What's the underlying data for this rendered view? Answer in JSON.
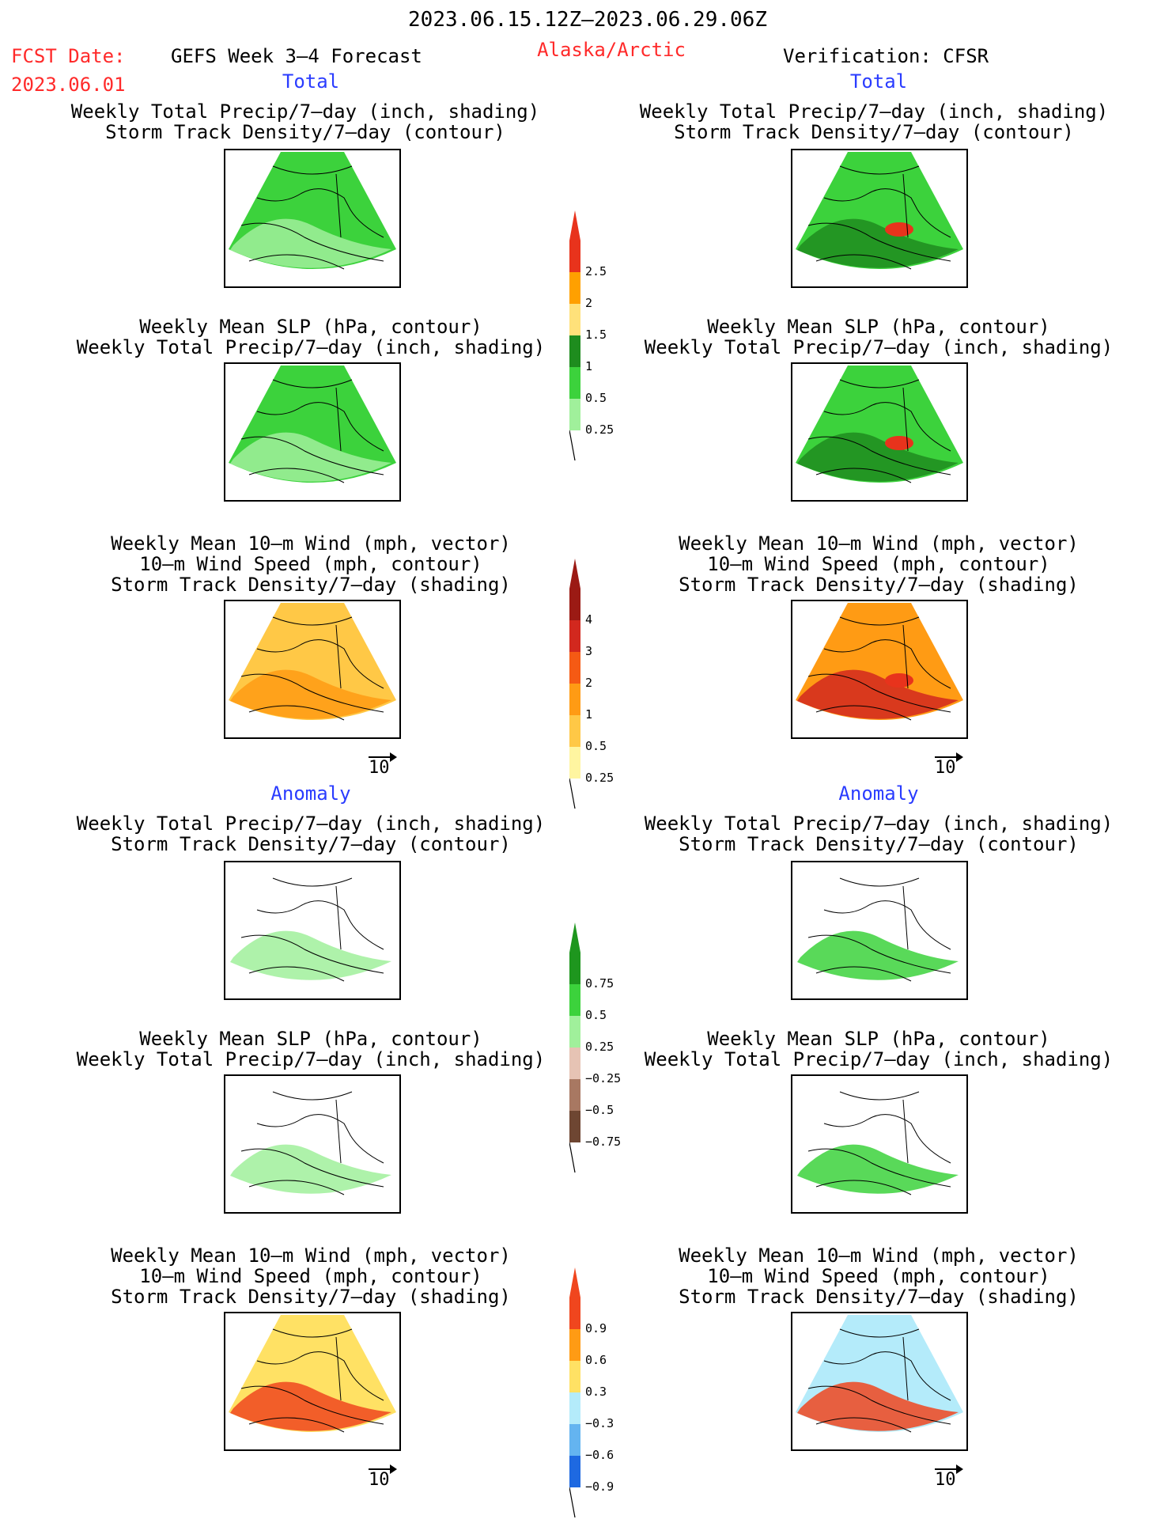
{
  "header": {
    "period": "2023.06.15.12Z–2023.06.29.06Z",
    "fcst_label": "FCST Date:",
    "fcst_date": "2023.06.01",
    "model": "GEFS Week 3–4 Forecast",
    "region": "Alaska/Arctic",
    "verification": "Verification: CFSR"
  },
  "sections": {
    "total": "Total",
    "anomaly": "Anomaly"
  },
  "panel_titles": {
    "precip_storm": [
      "Weekly Total Precip/7–day (inch, shading)",
      "Storm Track Density/7–day (contour)"
    ],
    "slp_precip": [
      "Weekly Mean SLP (hPa, contour)",
      "Weekly Total Precip/7–day (inch, shading)"
    ],
    "wind_storm": [
      "Weekly Mean 10–m Wind (mph, vector)",
      "10–m Wind Speed (mph, contour)",
      "Storm Track Density/7–day (shading)"
    ]
  },
  "vector_ref": "10",
  "colorbars": {
    "precip_total": {
      "labels": [
        "2.5",
        "2",
        "1.5",
        "1",
        "0.5",
        "0.25"
      ],
      "colors": [
        "#e8331c",
        "#ffa000",
        "#ffe17a",
        "#1e8c1e",
        "#3cd23c",
        "#a0f09b"
      ]
    },
    "storm_total": {
      "labels": [
        "4",
        "3",
        "2",
        "1",
        "0.5",
        "0.25"
      ],
      "colors": [
        "#9b1a14",
        "#d2281e",
        "#f55a14",
        "#ff9b14",
        "#ffc846",
        "#fff5a0"
      ]
    },
    "precip_anom": {
      "labels": [
        "0.75",
        "0.5",
        "0.25",
        "−0.25",
        "−0.5",
        "−0.75"
      ],
      "colors": [
        "#1e961e",
        "#3cd23c",
        "#a0f09b",
        "#e6c3b4",
        "#a87862",
        "#6e4632"
      ]
    },
    "storm_anom": {
      "labels": [
        "0.9",
        "0.6",
        "0.3",
        "−0.3",
        "−0.6",
        "−0.9"
      ],
      "colors": [
        "#f0461e",
        "#ff9b14",
        "#ffe164",
        "#b4ebfa",
        "#64b4f0",
        "#1e69e1"
      ]
    }
  },
  "panels": [
    {
      "id": "total-precip-storm-forecast",
      "fill": "green-light",
      "hotspot": false
    },
    {
      "id": "total-precip-storm-verification",
      "fill": "green",
      "hotspot": true
    },
    {
      "id": "total-slp-precip-forecast",
      "fill": "green-light",
      "hotspot": false
    },
    {
      "id": "total-slp-precip-verification",
      "fill": "green",
      "hotspot": true
    },
    {
      "id": "total-wind-storm-forecast",
      "fill": "orange",
      "hotspot": false
    },
    {
      "id": "total-wind-storm-verification",
      "fill": "orange-red",
      "hotspot": true
    },
    {
      "id": "anom-precip-storm-forecast",
      "fill": "sparse",
      "hotspot": false
    },
    {
      "id": "anom-precip-storm-verification",
      "fill": "sparse-green",
      "hotspot": false
    },
    {
      "id": "anom-slp-precip-forecast",
      "fill": "sparse",
      "hotspot": false
    },
    {
      "id": "anom-slp-precip-verification",
      "fill": "sparse-green",
      "hotspot": false
    },
    {
      "id": "anom-wind-storm-forecast",
      "fill": "anom-orange",
      "hotspot": false
    },
    {
      "id": "anom-wind-storm-verification",
      "fill": "anom-mixed",
      "hotspot": false
    }
  ]
}
